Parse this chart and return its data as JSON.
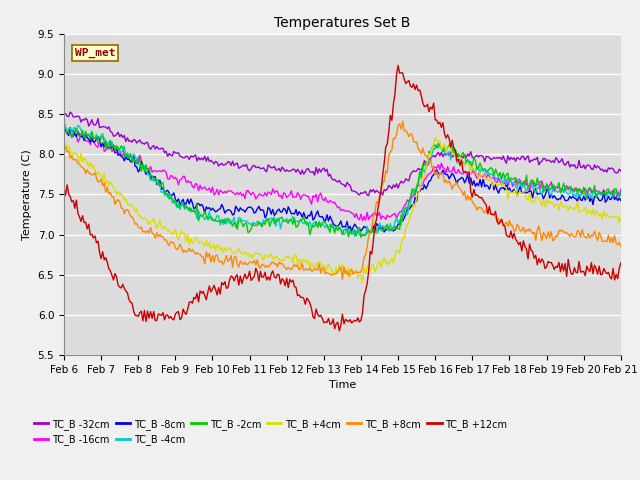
{
  "title": "Temperatures Set B",
  "xlabel": "Time",
  "ylabel": "Temperature (C)",
  "ylim": [
    5.5,
    9.5
  ],
  "xlim": [
    0,
    360
  ],
  "x_tick_labels": [
    "Feb 6",
    "Feb 7",
    "Feb 8",
    "Feb 9",
    "Feb 10",
    "Feb 11",
    "Feb 12",
    "Feb 13",
    "Feb 14",
    "Feb 15",
    "Feb 16",
    "Feb 17",
    "Feb 18",
    "Feb 19",
    "Feb 20",
    "Feb 21"
  ],
  "background_color": "#dcdcdc",
  "grid_color": "#ffffff",
  "fig_facecolor": "#f0f0f0",
  "series": [
    {
      "label": "TC_B -32cm",
      "color": "#9900cc"
    },
    {
      "label": "TC_B -16cm",
      "color": "#ff00ff"
    },
    {
      "label": "TC_B -8cm",
      "color": "#0000ee"
    },
    {
      "label": "TC_B -4cm",
      "color": "#00cccc"
    },
    {
      "label": "TC_B -2cm",
      "color": "#00cc00"
    },
    {
      "label": "TC_B +4cm",
      "color": "#dddd00"
    },
    {
      "label": "TC_B +8cm",
      "color": "#ff8800"
    },
    {
      "label": "TC_B +12cm",
      "color": "#cc0000"
    }
  ],
  "wp_met_box_color": "#ffffcc",
  "wp_met_text_color": "#990000",
  "wp_met_border_color": "#996600"
}
